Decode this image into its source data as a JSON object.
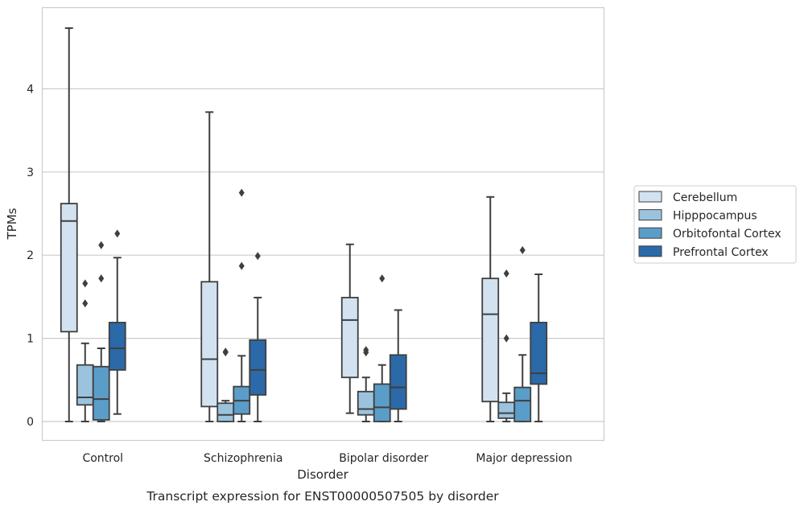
{
  "chart_data": {
    "type": "box",
    "title": "",
    "caption": "Transcript expression for ENST00000507505 by disorder",
    "xlabel": "Disorder",
    "ylabel": "TPMs",
    "ylim": [
      -0.23,
      5.0
    ],
    "yticks": [
      0,
      1,
      2,
      3,
      4
    ],
    "grid": "horizontal",
    "legend_position": "right",
    "categories": [
      "Control",
      "Schizophrenia",
      "Bipolar disorder",
      "Major depression"
    ],
    "series": [
      {
        "name": "Cerebellum",
        "color": "#d2e2f1",
        "boxes": [
          {
            "min": 0.0,
            "q1": 1.08,
            "median": 2.41,
            "q3": 2.62,
            "max": 4.73,
            "outliers": []
          },
          {
            "min": 0.0,
            "q1": 0.18,
            "median": 0.75,
            "q3": 1.68,
            "max": 3.72,
            "outliers": []
          },
          {
            "min": 0.1,
            "q1": 0.53,
            "median": 1.22,
            "q3": 1.49,
            "max": 2.13,
            "outliers": []
          },
          {
            "min": 0.0,
            "q1": 0.24,
            "median": 1.29,
            "q3": 1.72,
            "max": 2.7,
            "outliers": []
          }
        ]
      },
      {
        "name": "Hipppocampus",
        "color": "#9bc3de",
        "boxes": [
          {
            "min": 0.0,
            "q1": 0.2,
            "median": 0.29,
            "q3": 0.68,
            "max": 0.94,
            "outliers": [
              1.42,
              1.66
            ]
          },
          {
            "min": 0.0,
            "q1": 0.0,
            "median": 0.08,
            "q3": 0.22,
            "max": 0.25,
            "outliers": [
              0.83,
              0.84
            ]
          },
          {
            "min": 0.0,
            "q1": 0.08,
            "median": 0.15,
            "q3": 0.36,
            "max": 0.53,
            "outliers": [
              0.83,
              0.86
            ]
          },
          {
            "min": 0.0,
            "q1": 0.04,
            "median": 0.1,
            "q3": 0.23,
            "max": 0.34,
            "outliers": [
              1.0,
              1.78
            ]
          }
        ]
      },
      {
        "name": "Orbitofontal Cortex",
        "color": "#5b9dc9",
        "boxes": [
          {
            "min": 0.0,
            "q1": 0.02,
            "median": 0.27,
            "q3": 0.66,
            "max": 0.88,
            "outliers": [
              1.72,
              2.12
            ]
          },
          {
            "min": 0.0,
            "q1": 0.09,
            "median": 0.25,
            "q3": 0.42,
            "max": 0.79,
            "outliers": [
              1.87,
              2.75
            ]
          },
          {
            "min": 0.0,
            "q1": 0.0,
            "median": 0.17,
            "q3": 0.45,
            "max": 0.68,
            "outliers": [
              1.72
            ]
          },
          {
            "min": 0.0,
            "q1": 0.0,
            "median": 0.25,
            "q3": 0.41,
            "max": 0.8,
            "outliers": [
              2.06
            ]
          }
        ]
      },
      {
        "name": "Prefrontal Cortex",
        "color": "#2b69a8",
        "boxes": [
          {
            "min": 0.09,
            "q1": 0.62,
            "median": 0.88,
            "q3": 1.19,
            "max": 1.97,
            "outliers": [
              2.26
            ]
          },
          {
            "min": 0.0,
            "q1": 0.32,
            "median": 0.62,
            "q3": 0.98,
            "max": 1.49,
            "outliers": [
              1.99
            ]
          },
          {
            "min": 0.0,
            "q1": 0.15,
            "median": 0.41,
            "q3": 0.8,
            "max": 1.34,
            "outliers": []
          },
          {
            "min": 0.0,
            "q1": 0.45,
            "median": 0.58,
            "q3": 1.19,
            "max": 1.77,
            "outliers": []
          }
        ]
      }
    ]
  }
}
